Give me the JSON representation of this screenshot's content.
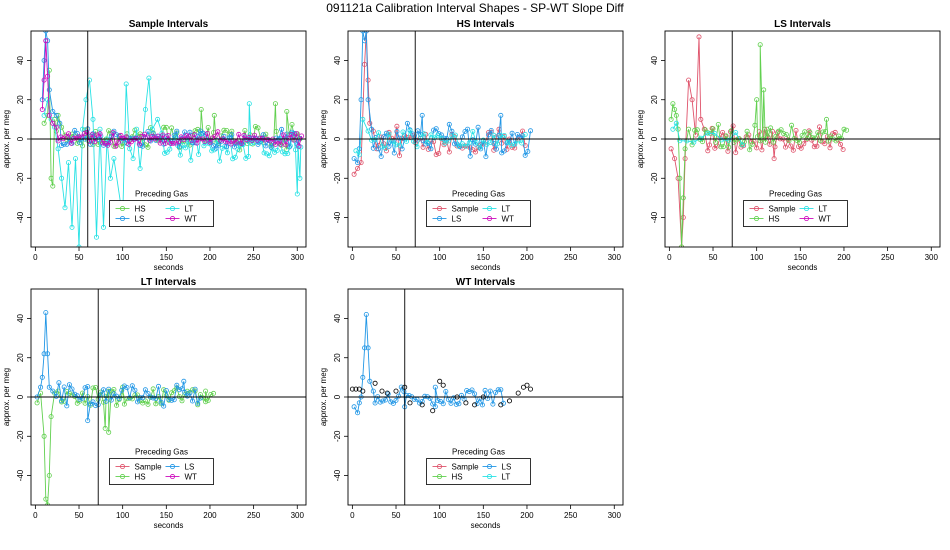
{
  "figure": {
    "title": "091121a   Calibration Interval Shapes - SP-WT Slope Diff",
    "colors": {
      "Sample": "#df536b",
      "HS": "#61d04f",
      "LS": "#2297e6",
      "LT": "#28e2e5",
      "WT": "#cd0bbc",
      "WT_points": "#000000",
      "axis": "#000000"
    }
  },
  "chart_data": [
    {
      "type": "scatter",
      "title": "Sample Intervals",
      "xlabel": "seconds",
      "ylabel": "approx. per meg",
      "xlim": [
        -5,
        310
      ],
      "ylim": [
        -55,
        55
      ],
      "xticks": [
        0,
        50,
        100,
        150,
        200,
        250,
        300
      ],
      "yticks": [
        -40,
        -20,
        0,
        20,
        40
      ],
      "vline": 60,
      "hline": 0,
      "legend_title": "Preceding Gas",
      "legend": [
        "HS",
        "LT",
        "LS",
        "WT"
      ],
      "series": [
        {
          "name": "HS",
          "spike": [
            [
              10,
              8
            ],
            [
              14,
              12
            ],
            [
              16,
              35
            ],
            [
              18,
              -20
            ],
            [
              20,
              -24
            ],
            [
              22,
              10
            ],
            [
              24,
              4
            ],
            [
              26,
              12
            ],
            [
              30,
              6
            ],
            [
              34,
              2
            ]
          ],
          "noise": {
            "start": 36,
            "end": 305,
            "step": 3,
            "amp": 5,
            "mean": 1,
            "spikes": [
              [
                190,
                15
              ],
              [
                205,
                12
              ],
              [
                275,
                18
              ],
              [
                288,
                14
              ]
            ]
          }
        },
        {
          "name": "LT",
          "spike": [
            [
              10,
              12
            ],
            [
              14,
              20
            ],
            [
              18,
              10
            ],
            [
              22,
              6
            ],
            [
              26,
              -5
            ],
            [
              30,
              -20
            ],
            [
              34,
              -35
            ],
            [
              38,
              -12
            ],
            [
              42,
              -45
            ],
            [
              46,
              -10
            ],
            [
              50,
              -55
            ],
            [
              54,
              5
            ],
            [
              58,
              20
            ],
            [
              62,
              30
            ],
            [
              66,
              10
            ],
            [
              70,
              -50
            ],
            [
              74,
              5
            ],
            [
              78,
              -45
            ],
            [
              82,
              0
            ],
            [
              86,
              -20
            ],
            [
              90,
              -10
            ],
            [
              100,
              -40
            ],
            [
              104,
              28
            ],
            [
              108,
              -5
            ],
            [
              112,
              -10
            ],
            [
              116,
              5
            ],
            [
              120,
              -15
            ],
            [
              126,
              15
            ],
            [
              130,
              31
            ],
            [
              134,
              5
            ],
            [
              140,
              10
            ],
            [
              145,
              3
            ]
          ],
          "noise": {
            "start": 148,
            "end": 305,
            "step": 3,
            "amp": 6,
            "mean": -4,
            "spikes": [
              [
                245,
                18
              ],
              [
                300,
                -28
              ],
              [
                303,
                -20
              ]
            ]
          }
        },
        {
          "name": "LS",
          "spike": [
            [
              8,
              20
            ],
            [
              10,
              40
            ],
            [
              12,
              55
            ],
            [
              14,
              50
            ],
            [
              16,
              25
            ],
            [
              20,
              14
            ],
            [
              24,
              12
            ],
            [
              28,
              8
            ]
          ],
          "noise": {
            "start": 30,
            "end": 305,
            "step": 3,
            "amp": 4,
            "mean": 0,
            "spikes": []
          }
        },
        {
          "name": "WT",
          "spike": [
            [
              8,
              15
            ],
            [
              10,
              30
            ],
            [
              12,
              50
            ],
            [
              14,
              32
            ],
            [
              16,
              12
            ],
            [
              20,
              8
            ],
            [
              24,
              6
            ]
          ],
          "noise": {
            "start": 26,
            "end": 305,
            "step": 3,
            "amp": 3,
            "mean": 0,
            "spikes": []
          }
        }
      ]
    },
    {
      "type": "scatter",
      "title": "HS Intervals",
      "xlabel": "seconds",
      "ylabel": "approx. per meg",
      "xlim": [
        -5,
        310
      ],
      "ylim": [
        -55,
        55
      ],
      "xticks": [
        0,
        50,
        100,
        150,
        200,
        250,
        300
      ],
      "yticks": [
        -40,
        -20,
        0,
        20,
        40
      ],
      "vline": 72,
      "hline": 0,
      "legend_title": "Preceding Gas",
      "legend": [
        "Sample",
        "LT",
        "LS",
        "WT"
      ],
      "series": [
        {
          "name": "Sample",
          "spike": [
            [
              2,
              -18
            ],
            [
              6,
              -15
            ],
            [
              10,
              -12
            ],
            [
              14,
              38
            ],
            [
              16,
              55
            ],
            [
              18,
              30
            ],
            [
              20,
              8
            ],
            [
              24,
              4
            ],
            [
              28,
              -5
            ]
          ],
          "noise": {
            "start": 30,
            "end": 200,
            "step": 3,
            "amp": 6,
            "mean": -1,
            "spikes": []
          }
        },
        {
          "name": "LS",
          "spike": [
            [
              2,
              -10
            ],
            [
              6,
              -12
            ],
            [
              8,
              -5
            ],
            [
              10,
              20
            ],
            [
              12,
              55
            ],
            [
              14,
              50
            ],
            [
              16,
              55
            ],
            [
              18,
              20
            ],
            [
              22,
              5
            ]
          ],
          "noise": {
            "start": 24,
            "end": 205,
            "step": 3,
            "amp": 7,
            "mean": 0,
            "spikes": [
              [
                80,
                12
              ],
              [
                170,
                12
              ]
            ]
          }
        },
        {
          "name": "LT",
          "spike": [
            [
              4,
              -6
            ],
            [
              8,
              -8
            ],
            [
              12,
              10
            ],
            [
              18,
              4
            ]
          ],
          "noise": {
            "start": 22,
            "end": 200,
            "step": 4,
            "amp": 4,
            "mean": 0,
            "spikes": []
          }
        }
      ]
    },
    {
      "type": "scatter",
      "title": "LS Intervals",
      "xlabel": "seconds",
      "ylabel": "approx. per meg",
      "xlim": [
        -5,
        310
      ],
      "ylim": [
        -55,
        55
      ],
      "xticks": [
        0,
        50,
        100,
        150,
        200,
        250,
        300
      ],
      "yticks": [
        -40,
        -20,
        0,
        20,
        40
      ],
      "vline": 72,
      "hline": 0,
      "legend_title": "Preceding Gas",
      "legend": [
        "Sample",
        "LT",
        "HS",
        "WT"
      ],
      "series": [
        {
          "name": "Sample",
          "spike": [
            [
              2,
              -5
            ],
            [
              6,
              -10
            ],
            [
              10,
              -20
            ],
            [
              14,
              -55
            ],
            [
              16,
              -40
            ],
            [
              18,
              -10
            ],
            [
              22,
              30
            ],
            [
              26,
              20
            ],
            [
              30,
              2
            ],
            [
              34,
              52
            ],
            [
              36,
              10
            ],
            [
              40,
              5
            ],
            [
              44,
              -6
            ]
          ],
          "noise": {
            "start": 46,
            "end": 200,
            "step": 3,
            "amp": 6,
            "mean": 0,
            "spikes": [
              [
                120,
                -10
              ]
            ]
          }
        },
        {
          "name": "HS",
          "spike": [
            [
              2,
              10
            ],
            [
              4,
              18
            ],
            [
              6,
              15
            ],
            [
              8,
              12
            ],
            [
              10,
              5
            ],
            [
              12,
              -20
            ],
            [
              14,
              -55
            ],
            [
              16,
              -30
            ],
            [
              18,
              -5
            ],
            [
              22,
              5
            ]
          ],
          "noise": {
            "start": 26,
            "end": 205,
            "step": 3,
            "amp": 5,
            "mean": 1,
            "spikes": [
              [
                100,
                20
              ],
              [
                104,
                48
              ],
              [
                108,
                25
              ],
              [
                112,
                5
              ],
              [
                180,
                10
              ]
            ]
          }
        },
        {
          "name": "LT",
          "spike": [
            [
              4,
              5
            ],
            [
              8,
              8
            ]
          ],
          "noise": {
            "start": 12,
            "end": 90,
            "step": 8,
            "amp": 3,
            "mean": 0,
            "spikes": []
          }
        }
      ]
    },
    {
      "type": "scatter",
      "title": "LT Intervals",
      "xlabel": "seconds",
      "ylabel": "approx. per meg",
      "xlim": [
        -5,
        310
      ],
      "ylim": [
        -55,
        55
      ],
      "xticks": [
        0,
        50,
        100,
        150,
        200,
        250,
        300
      ],
      "yticks": [
        -40,
        -20,
        0,
        20,
        40
      ],
      "vline": 72,
      "hline": 0,
      "legend_title": "Preceding Gas",
      "legend": [
        "Sample",
        "LS",
        "HS",
        "WT"
      ],
      "series": [
        {
          "name": "HS",
          "spike": [
            [
              2,
              -3
            ],
            [
              6,
              2
            ],
            [
              10,
              -20
            ],
            [
              12,
              -52
            ],
            [
              14,
              -55
            ],
            [
              16,
              -40
            ],
            [
              18,
              -10
            ],
            [
              22,
              2
            ],
            [
              26,
              3
            ]
          ],
          "noise": {
            "start": 30,
            "end": 205,
            "step": 3,
            "amp": 4,
            "mean": 0,
            "spikes": [
              [
                80,
                -16
              ],
              [
                84,
                -18
              ],
              [
                100,
                5
              ],
              [
                195,
                3
              ]
            ]
          }
        },
        {
          "name": "LS",
          "spike": [
            [
              2,
              0
            ],
            [
              6,
              5
            ],
            [
              8,
              10
            ],
            [
              10,
              22
            ],
            [
              12,
              43
            ],
            [
              14,
              22
            ],
            [
              16,
              5
            ],
            [
              20,
              3
            ]
          ],
          "noise": {
            "start": 24,
            "end": 190,
            "step": 3,
            "amp": 5,
            "mean": 1,
            "spikes": [
              [
                60,
                -12
              ],
              [
                170,
                8
              ]
            ]
          }
        }
      ]
    },
    {
      "type": "scatter",
      "title": "WT Intervals",
      "xlabel": "seconds",
      "ylabel": "approx. per meg",
      "xlim": [
        -5,
        310
      ],
      "ylim": [
        -55,
        55
      ],
      "xticks": [
        0,
        50,
        100,
        150,
        200,
        250,
        300
      ],
      "yticks": [
        -40,
        -20,
        0,
        20,
        40
      ],
      "vline": 60,
      "hline": 0,
      "legend_title": "Preceding Gas",
      "legend": [
        "Sample",
        "LS",
        "HS",
        "LT"
      ],
      "series": [
        {
          "name": "LS",
          "spike": [
            [
              2,
              -5
            ],
            [
              6,
              -8
            ],
            [
              8,
              -3
            ],
            [
              10,
              0
            ],
            [
              12,
              10
            ],
            [
              14,
              25
            ],
            [
              16,
              42
            ],
            [
              18,
              25
            ],
            [
              20,
              8
            ],
            [
              24,
              3
            ]
          ],
          "noise": {
            "start": 26,
            "end": 175,
            "step": 3,
            "amp": 4,
            "mean": 0,
            "spikes": [
              [
                60,
                -5
              ],
              [
                95,
                5
              ]
            ]
          }
        },
        {
          "name": "WT_points",
          "spike": [
            [
              0,
              4
            ],
            [
              4,
              4
            ],
            [
              8,
              4
            ],
            [
              12,
              3
            ],
            [
              26,
              7
            ],
            [
              34,
              3
            ],
            [
              40,
              2
            ],
            [
              50,
              3
            ],
            [
              60,
              5
            ],
            [
              66,
              -3
            ],
            [
              80,
              -4
            ],
            [
              92,
              -7
            ],
            [
              100,
              8
            ],
            [
              104,
              6
            ],
            [
              120,
              0
            ],
            [
              130,
              -3
            ],
            [
              140,
              -4
            ],
            [
              150,
              0
            ],
            [
              170,
              -4
            ],
            [
              180,
              -2
            ],
            [
              190,
              2
            ],
            [
              196,
              5
            ],
            [
              200,
              6
            ],
            [
              204,
              4
            ]
          ],
          "noise": null,
          "points_only": true
        }
      ]
    }
  ]
}
